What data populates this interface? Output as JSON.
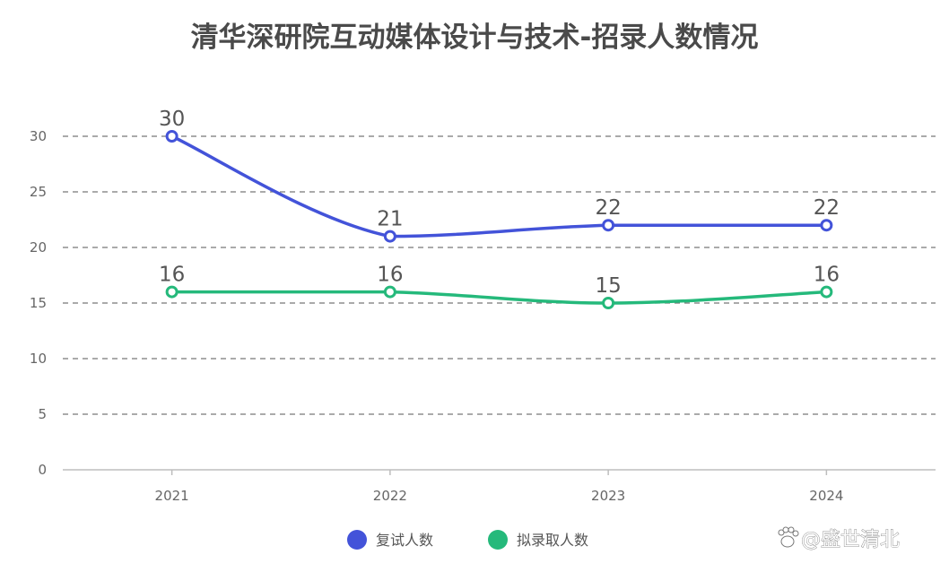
{
  "chart_data": {
    "type": "line",
    "title": "清华深研院互动媒体设计与技术-招录人数情况",
    "categories": [
      "2021",
      "2022",
      "2023",
      "2024"
    ],
    "series": [
      {
        "name": "复试人数",
        "values": [
          30,
          21,
          22,
          22
        ],
        "color": "#4353d9"
      },
      {
        "name": "拟录取人数",
        "values": [
          16,
          16,
          15,
          16
        ],
        "color": "#25b97b"
      }
    ],
    "ylim": [
      0,
      30
    ],
    "yticks": [
      "0",
      "5",
      "10",
      "15",
      "20",
      "25",
      "30"
    ],
    "grid": true,
    "legend_position": "bottom-center",
    "smooth": true,
    "data_labels": true
  },
  "watermark": "@盛世清北",
  "watermark_icon": "paw-icon"
}
